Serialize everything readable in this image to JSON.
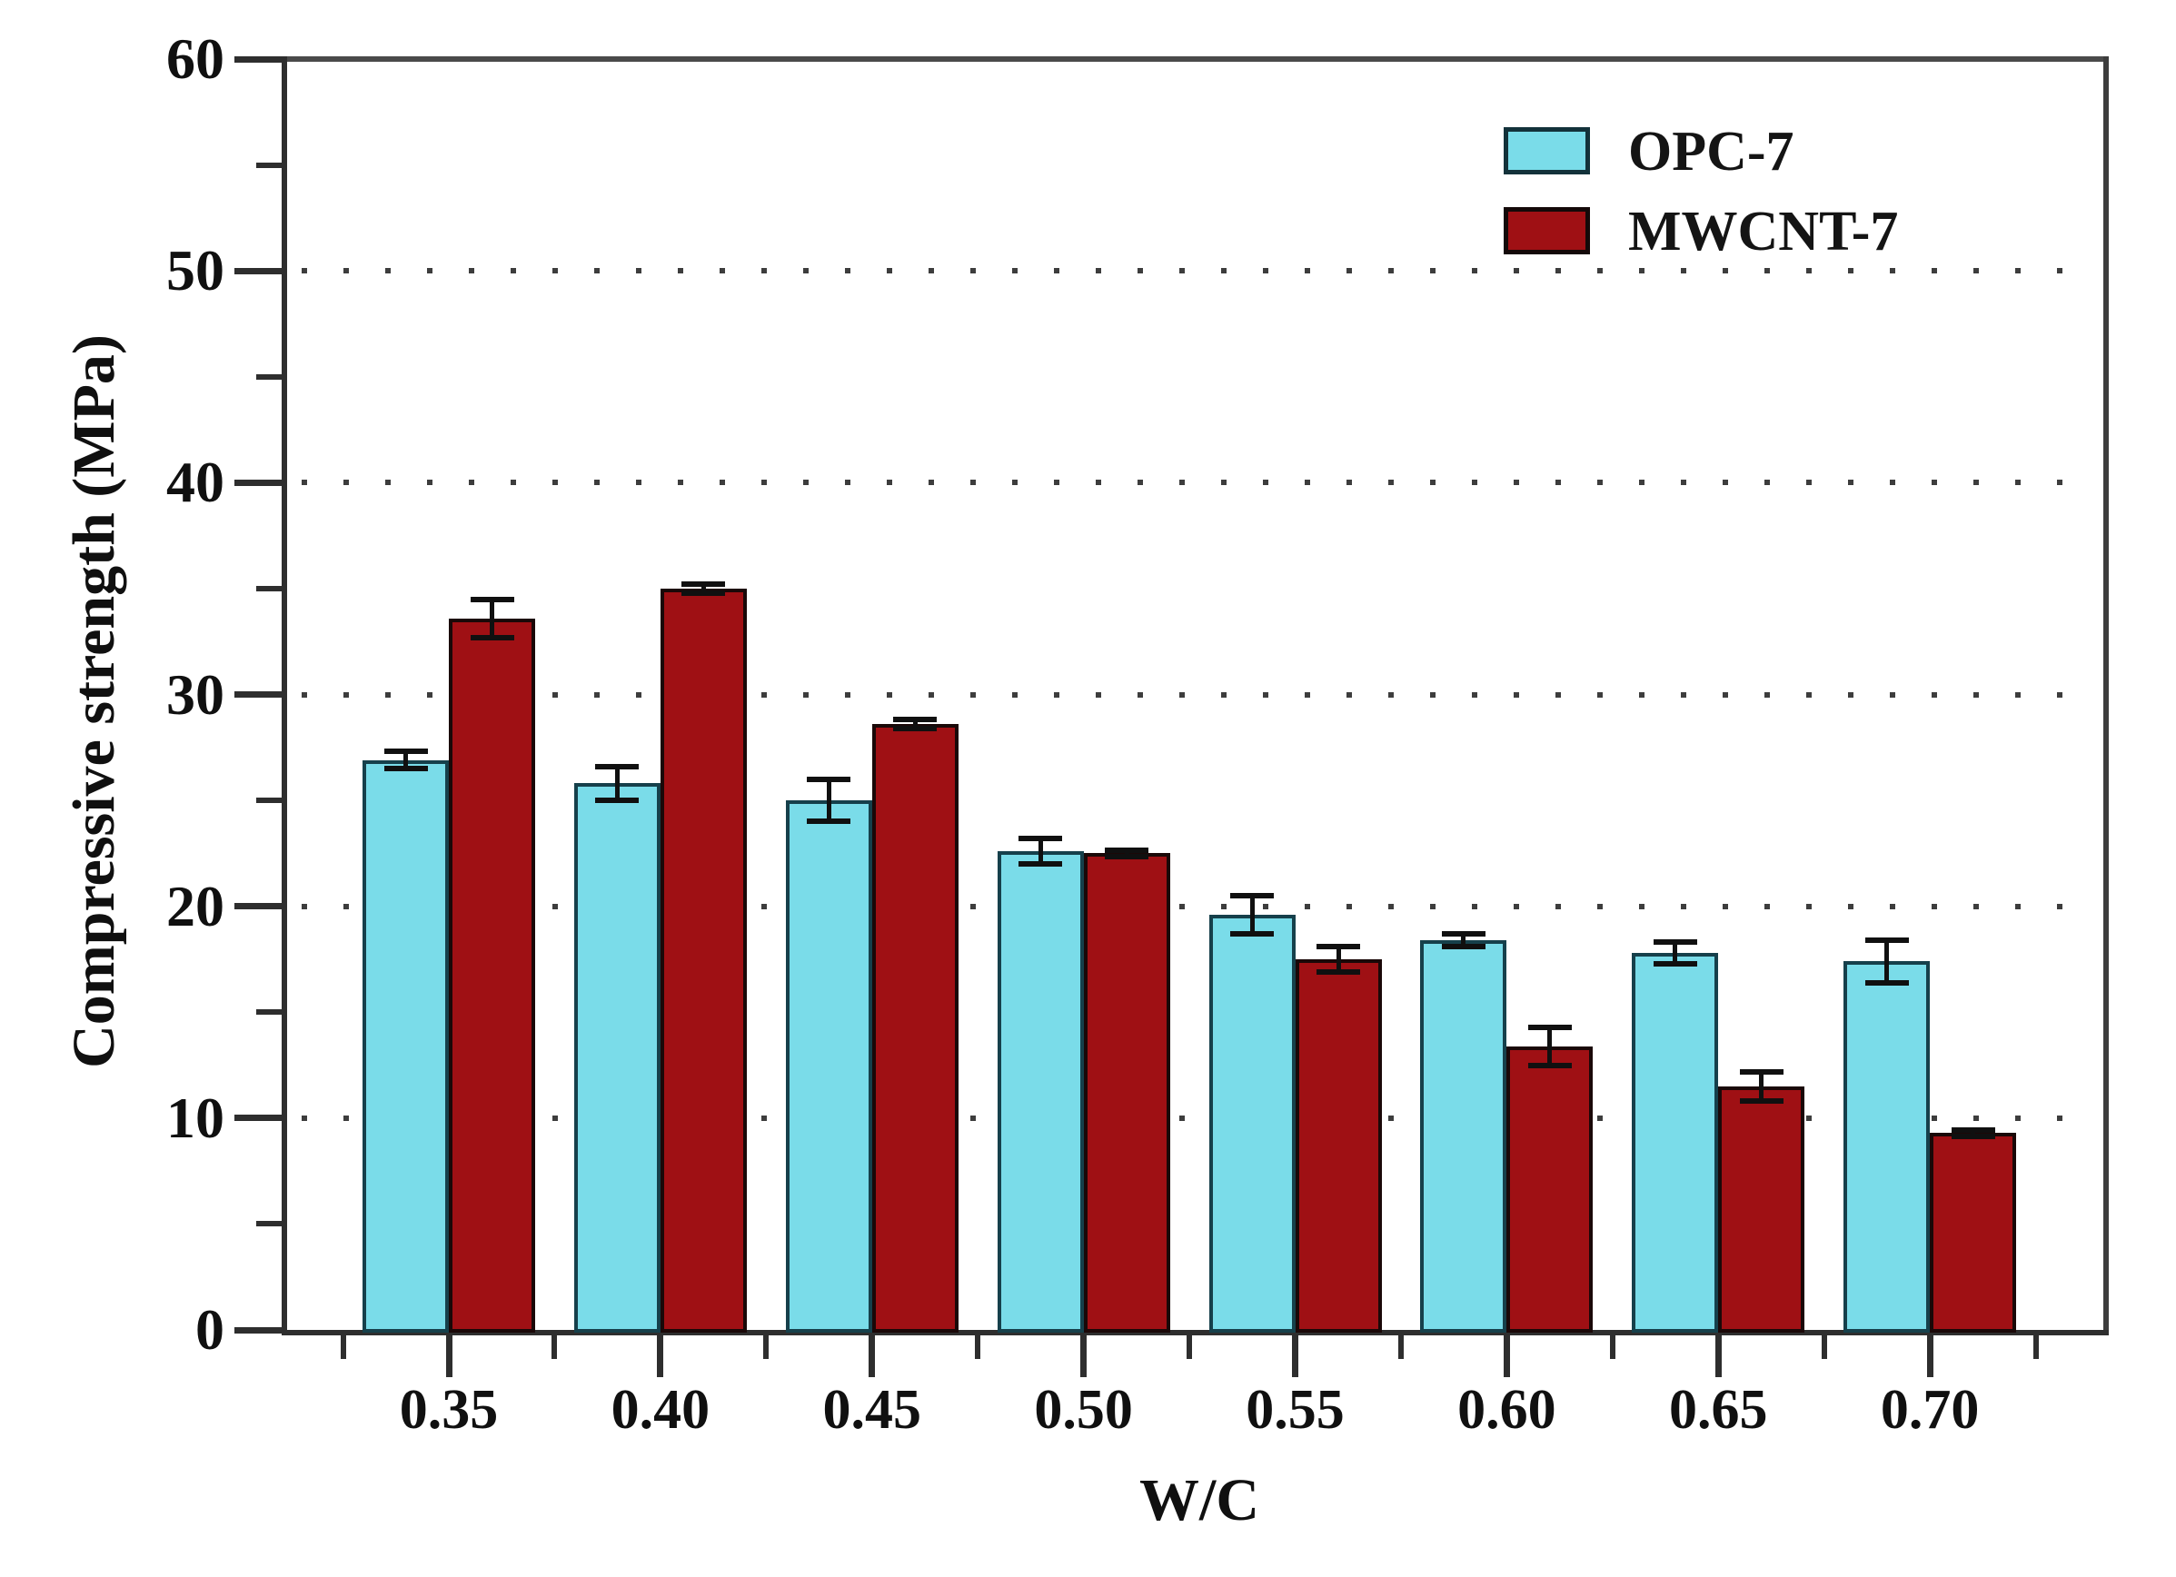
{
  "chart_data": {
    "type": "bar",
    "xlabel": "W/C",
    "ylabel": "Compressive strength (MPa)",
    "categories": [
      "0.35",
      "0.40",
      "0.45",
      "0.50",
      "0.55",
      "0.60",
      "0.65",
      "0.70"
    ],
    "series": [
      {
        "name": "OPC-7",
        "fill_color": "#7ADCE9",
        "border_color": "#16404B",
        "values": [
          26.9,
          25.8,
          25.0,
          22.6,
          19.6,
          18.4,
          17.8,
          17.4
        ],
        "errors": [
          0.4,
          0.8,
          1.0,
          0.6,
          0.9,
          0.3,
          0.5,
          1.0
        ]
      },
      {
        "name": "MWCNT-7",
        "fill_color": "#9F1014",
        "border_color": "#1A0808",
        "values": [
          33.6,
          35.0,
          28.6,
          22.5,
          17.5,
          13.4,
          11.5,
          9.3
        ],
        "errors": [
          0.9,
          0.2,
          0.2,
          0.15,
          0.6,
          0.9,
          0.7,
          0.15
        ]
      }
    ],
    "ylim": [
      0,
      60
    ],
    "yticks": [
      0,
      10,
      20,
      30,
      40,
      50,
      60
    ],
    "yticks_minor": [
      5,
      15,
      25,
      35,
      45,
      55
    ],
    "grid_values": [
      10,
      20,
      30,
      40,
      50
    ],
    "grid_style": "dotted horizontal",
    "legend_position": "top-right inside plot",
    "colors": {
      "axis": "#2E2E2E",
      "axis_top": "#4A4A4A",
      "grid_dot": "#3D3D3D",
      "error_bar": "#101010",
      "text": "#101010",
      "background": "#FFFFFF"
    }
  }
}
